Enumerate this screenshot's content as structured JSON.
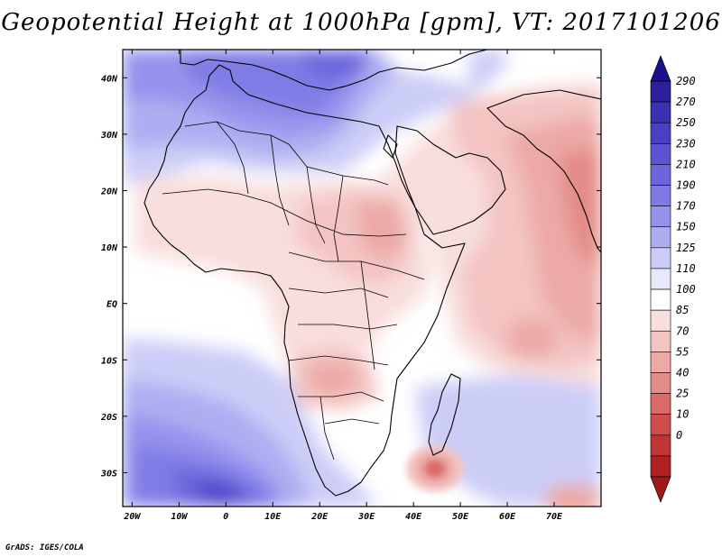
{
  "title": "Geopotential Height at 1000hPa [gpm], VT: 2017101206",
  "credit": "GrADS: IGES/COLA",
  "map": {
    "lon_range": [
      -22,
      80
    ],
    "lat_range": [
      -36,
      45
    ],
    "x_ticks": [
      {
        "value": -20,
        "label": "20W"
      },
      {
        "value": -10,
        "label": "10W"
      },
      {
        "value": 0,
        "label": "0"
      },
      {
        "value": 10,
        "label": "10E"
      },
      {
        "value": 20,
        "label": "20E"
      },
      {
        "value": 30,
        "label": "30E"
      },
      {
        "value": 40,
        "label": "40E"
      },
      {
        "value": 50,
        "label": "50E"
      },
      {
        "value": 60,
        "label": "60E"
      },
      {
        "value": 70,
        "label": "70E"
      }
    ],
    "y_ticks": [
      {
        "value": 40,
        "label": "40N"
      },
      {
        "value": 30,
        "label": "30N"
      },
      {
        "value": 20,
        "label": "20N"
      },
      {
        "value": 10,
        "label": "10N"
      },
      {
        "value": 0,
        "label": "EQ"
      },
      {
        "value": -10,
        "label": "10S"
      },
      {
        "value": -20,
        "label": "20S"
      },
      {
        "value": -30,
        "label": "30S"
      }
    ]
  },
  "colorbar": {
    "levels": [
      "290",
      "270",
      "250",
      "230",
      "210",
      "190",
      "170",
      "150",
      "125",
      "110",
      "100",
      "85",
      "70",
      "55",
      "40",
      "25",
      "10",
      "0"
    ],
    "colors": [
      "#2c1f9e",
      "#3b2fb3",
      "#4a40c4",
      "#5b53d2",
      "#6c66dc",
      "#7f7be5",
      "#9592ec",
      "#aeadf2",
      "#cccdf7",
      "#e8e9fb",
      "#ffffff",
      "#f8dedd",
      "#f3c4c2",
      "#eca9a6",
      "#e38b88",
      "#d96a68",
      "#cf4d4b",
      "#c23433",
      "#b02222"
    ],
    "top_arrow_color": "#1c118a",
    "bottom_arrow_color": "#a01818"
  }
}
